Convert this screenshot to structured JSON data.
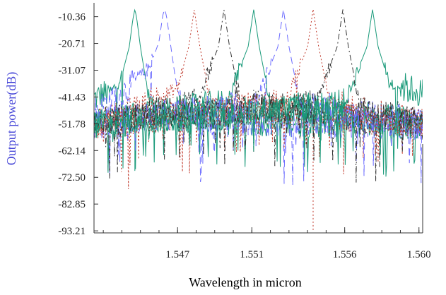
{
  "chart_data": {
    "type": "line",
    "xlabel": "Wavelength in micron",
    "ylabel": "Output power(dB)",
    "xlim": [
      1.5425,
      1.5602
    ],
    "ylim": [
      -94,
      -5
    ],
    "x_ticks": [
      1.547,
      1.551,
      1.556,
      1.56
    ],
    "x_tick_labels": [
      "1.547",
      "1.551",
      "1.556",
      "1.560"
    ],
    "y_ticks": [
      -10.36,
      -20.71,
      -31.07,
      -41.43,
      -51.78,
      -62.14,
      -72.5,
      -82.85,
      -93.21
    ],
    "y_tick_labels": [
      "-10.36",
      "-20.71",
      "-31.07",
      "-41.43",
      "-51.78",
      "-62.14",
      "-72.50",
      "-82.85",
      "-93.21"
    ],
    "grid": false,
    "legend": "none",
    "series_colors": [
      "#1a9a7a",
      "#6b6bff",
      "#c0392b",
      "#333333"
    ],
    "series": [
      {
        "peak": 1.5447,
        "values": [
          {
            "x": 1.5425,
            "y": -42
          },
          {
            "x": 1.5435,
            "y": -39
          },
          {
            "x": 1.544,
            "y": -33
          },
          {
            "x": 1.5444,
            "y": -22
          },
          {
            "x": 1.5446,
            "y": -11
          },
          {
            "x": 1.5447,
            "y": -7.5
          },
          {
            "x": 1.5448,
            "y": -11
          },
          {
            "x": 1.545,
            "y": -22
          },
          {
            "x": 1.5454,
            "y": -40
          },
          {
            "x": 1.546,
            "y": -50
          },
          {
            "x": 1.5602,
            "y": -52
          }
        ],
        "min_dip": {
          "x": 1.5447,
          "y": -70
        }
      },
      {
        "peak": 1.5463,
        "values": [
          {
            "x": 1.5425,
            "y": -47
          },
          {
            "x": 1.544,
            "y": -40
          },
          {
            "x": 1.5455,
            "y": -30
          },
          {
            "x": 1.546,
            "y": -20
          },
          {
            "x": 1.5462,
            "y": -10
          },
          {
            "x": 1.5463,
            "y": -7.5
          },
          {
            "x": 1.5464,
            "y": -10
          },
          {
            "x": 1.5466,
            "y": -20
          },
          {
            "x": 1.547,
            "y": -40
          },
          {
            "x": 1.548,
            "y": -50
          },
          {
            "x": 1.5602,
            "y": -52
          }
        ]
      },
      {
        "peak": 1.5479,
        "values": [
          {
            "x": 1.5425,
            "y": -52
          },
          {
            "x": 1.545,
            "y": -46
          },
          {
            "x": 1.547,
            "y": -38
          },
          {
            "x": 1.5476,
            "y": -22
          },
          {
            "x": 1.5479,
            "y": -7.5
          },
          {
            "x": 1.5482,
            "y": -22
          },
          {
            "x": 1.5488,
            "y": -44
          },
          {
            "x": 1.5602,
            "y": -52
          }
        ]
      },
      {
        "peak": 1.5495,
        "values": [
          {
            "x": 1.5425,
            "y": -52
          },
          {
            "x": 1.548,
            "y": -44
          },
          {
            "x": 1.5492,
            "y": -22
          },
          {
            "x": 1.5495,
            "y": -7.5
          },
          {
            "x": 1.5498,
            "y": -22
          },
          {
            "x": 1.5504,
            "y": -44
          },
          {
            "x": 1.5602,
            "y": -52
          }
        ]
      },
      {
        "peak": 1.5511,
        "values": [
          {
            "x": 1.5425,
            "y": -52
          },
          {
            "x": 1.5496,
            "y": -44
          },
          {
            "x": 1.5508,
            "y": -22
          },
          {
            "x": 1.5511,
            "y": -7.5
          },
          {
            "x": 1.5514,
            "y": -22
          },
          {
            "x": 1.552,
            "y": -44
          },
          {
            "x": 1.5602,
            "y": -52
          }
        ]
      },
      {
        "peak": 1.5527,
        "values": [
          {
            "x": 1.5425,
            "y": -52
          },
          {
            "x": 1.5512,
            "y": -44
          },
          {
            "x": 1.5524,
            "y": -22
          },
          {
            "x": 1.5527,
            "y": -7.5
          },
          {
            "x": 1.553,
            "y": -22
          },
          {
            "x": 1.5536,
            "y": -44
          },
          {
            "x": 1.5602,
            "y": -52
          }
        ]
      },
      {
        "peak": 1.5543,
        "values": [
          {
            "x": 1.5425,
            "y": -52
          },
          {
            "x": 1.5528,
            "y": -44
          },
          {
            "x": 1.554,
            "y": -22
          },
          {
            "x": 1.5543,
            "y": -7.5
          },
          {
            "x": 1.5546,
            "y": -22
          },
          {
            "x": 1.5552,
            "y": -44
          },
          {
            "x": 1.5602,
            "y": -52
          }
        ],
        "min_dip": {
          "x": 1.5543,
          "y": -93
        }
      },
      {
        "peak": 1.5559,
        "values": [
          {
            "x": 1.5425,
            "y": -52
          },
          {
            "x": 1.5544,
            "y": -44
          },
          {
            "x": 1.5556,
            "y": -22
          },
          {
            "x": 1.5559,
            "y": -7.5
          },
          {
            "x": 1.5562,
            "y": -22
          },
          {
            "x": 1.5568,
            "y": -44
          },
          {
            "x": 1.5602,
            "y": -52
          }
        ]
      },
      {
        "peak": 1.5575,
        "values": [
          {
            "x": 1.5425,
            "y": -52
          },
          {
            "x": 1.556,
            "y": -44
          },
          {
            "x": 1.5572,
            "y": -22
          },
          {
            "x": 1.5575,
            "y": -7.5
          },
          {
            "x": 1.5578,
            "y": -22
          },
          {
            "x": 1.5584,
            "y": -36
          },
          {
            "x": 1.5602,
            "y": -40
          }
        ]
      }
    ]
  }
}
